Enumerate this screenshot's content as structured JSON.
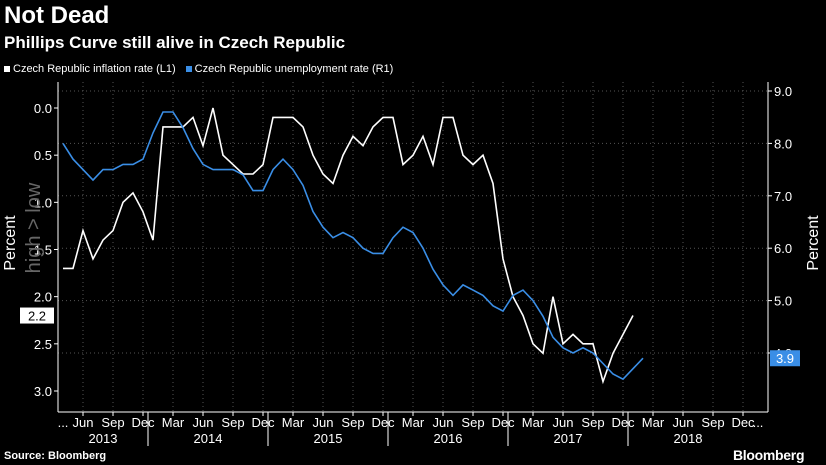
{
  "chart_data": {
    "type": "line",
    "title": "Not Dead",
    "subtitle": "Phillips Curve still alive in Czech Republic",
    "source": "Source: Bloomberg",
    "brand": "Bloomberg",
    "left_axis": {
      "label": "Percent",
      "inverted": true,
      "range": [
        0,
        3.2
      ],
      "ticks": [
        "0.0",
        "0.5",
        "1.0",
        "1.5",
        "2.0",
        "2.5",
        "3.0"
      ],
      "overlay_text": "high > low"
    },
    "right_axis": {
      "label": "Percent",
      "range": [
        3.2,
        9.0
      ],
      "ticks": [
        "9.0",
        "8.0",
        "7.0",
        "6.0",
        "5.0",
        "4.0"
      ]
    },
    "x_axis": {
      "month_labels": [
        {
          "label": "...",
          "index": 0
        },
        {
          "label": "Jun",
          "index": 2
        },
        {
          "label": "Sep",
          "index": 5
        },
        {
          "label": "Dec",
          "index": 8
        },
        {
          "label": "Mar",
          "index": 11
        },
        {
          "label": "Jun",
          "index": 14
        },
        {
          "label": "Sep",
          "index": 17
        },
        {
          "label": "Dec",
          "index": 20
        },
        {
          "label": "Mar",
          "index": 23
        },
        {
          "label": "Jun",
          "index": 26
        },
        {
          "label": "Sep",
          "index": 29
        },
        {
          "label": "Dec",
          "index": 32
        },
        {
          "label": "Mar",
          "index": 35
        },
        {
          "label": "Jun",
          "index": 38
        },
        {
          "label": "Sep",
          "index": 41
        },
        {
          "label": "Dec",
          "index": 44
        },
        {
          "label": "Mar",
          "index": 47
        },
        {
          "label": "Jun",
          "index": 50
        },
        {
          "label": "Sep",
          "index": 53
        },
        {
          "label": "Dec",
          "index": 56
        },
        {
          "label": "Mar",
          "index": 59
        },
        {
          "label": "Jun",
          "index": 62
        },
        {
          "label": "Sep",
          "index": 65
        },
        {
          "label": "Dec",
          "index": 68
        },
        {
          "label": "...",
          "index": 69.5
        }
      ],
      "years": [
        {
          "label": "2013",
          "start": -0.5,
          "end": 8.5
        },
        {
          "label": "2014",
          "start": 8.5,
          "end": 20.5
        },
        {
          "label": "2015",
          "start": 20.5,
          "end": 32.5
        },
        {
          "label": "2016",
          "start": 32.5,
          "end": 44.5
        },
        {
          "label": "2017",
          "start": 44.5,
          "end": 56.5
        },
        {
          "label": "2018",
          "start": 56.5,
          "end": 68.5
        }
      ],
      "range": [
        -0.5,
        70.5
      ]
    },
    "series": [
      {
        "name": "Czech Republic inflation rate (L1)",
        "axis": "left",
        "color": "#ffffff",
        "last_label": "2.2",
        "values": [
          1.7,
          1.7,
          1.3,
          1.6,
          1.4,
          1.3,
          1.0,
          0.9,
          1.1,
          1.4,
          0.2,
          0.2,
          0.2,
          0.1,
          0.4,
          0.0,
          0.5,
          0.6,
          0.7,
          0.7,
          0.6,
          0.1,
          0.1,
          0.1,
          0.2,
          0.5,
          0.7,
          0.8,
          0.5,
          0.3,
          0.4,
          0.2,
          0.1,
          0.1,
          0.6,
          0.5,
          0.3,
          0.6,
          0.1,
          0.1,
          0.5,
          0.6,
          0.5,
          0.8,
          1.6,
          2.0,
          2.2,
          2.5,
          2.6,
          2.0,
          2.5,
          2.4,
          2.5,
          2.5,
          2.9,
          2.6,
          2.4,
          2.2
        ]
      },
      {
        "name": "Czech Republic unemployment rate (R1)",
        "axis": "right",
        "color": "#3a8ee6",
        "last_label": "3.9",
        "values": [
          8.0,
          7.7,
          7.5,
          7.3,
          7.5,
          7.5,
          7.6,
          7.6,
          7.7,
          8.2,
          8.6,
          8.6,
          8.3,
          7.9,
          7.6,
          7.5,
          7.5,
          7.5,
          7.4,
          7.1,
          7.1,
          7.5,
          7.7,
          7.5,
          7.2,
          6.7,
          6.4,
          6.2,
          6.3,
          6.2,
          6.0,
          5.9,
          5.9,
          6.2,
          6.4,
          6.3,
          6.0,
          5.6,
          5.3,
          5.1,
          5.3,
          5.2,
          5.1,
          4.9,
          4.8,
          5.1,
          5.2,
          5.0,
          4.7,
          4.3,
          4.1,
          4.0,
          4.1,
          4.0,
          3.8,
          3.6,
          3.5,
          3.7,
          3.9
        ]
      }
    ]
  }
}
